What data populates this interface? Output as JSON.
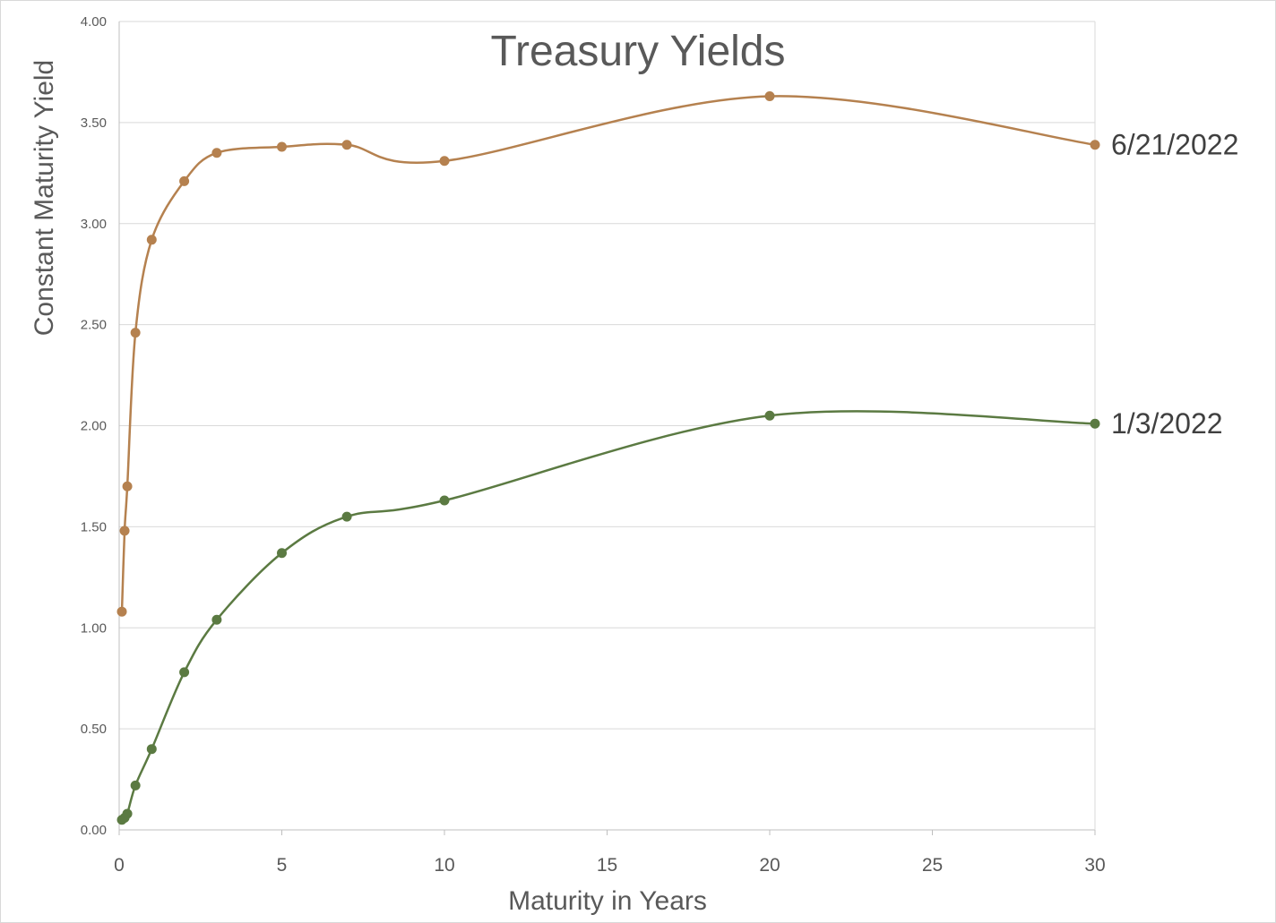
{
  "chart_data": {
    "type": "line",
    "title": "Treasury Yields",
    "xlabel": "Maturity in Years",
    "ylabel": "Constant Maturity Yield",
    "xlim": [
      0,
      30
    ],
    "ylim": [
      0,
      4
    ],
    "x_ticks": [
      "0",
      "5",
      "10",
      "15",
      "20",
      "25",
      "30"
    ],
    "y_ticks": [
      "0.00",
      "0.50",
      "1.00",
      "1.50",
      "2.00",
      "2.50",
      "3.00",
      "3.50",
      "4.00"
    ],
    "grid": "horizontal",
    "legend": "none",
    "smooth": true,
    "x": [
      0.0833,
      0.1667,
      0.25,
      0.5,
      1,
      2,
      3,
      5,
      7,
      10,
      20,
      30
    ],
    "series": [
      {
        "name": "6/21/2022",
        "color": "#b5814f",
        "values": [
          1.08,
          1.48,
          1.7,
          2.46,
          2.92,
          3.21,
          3.35,
          3.38,
          3.39,
          3.31,
          3.63,
          3.39
        ]
      },
      {
        "name": "1/3/2022",
        "color": "#5b7a42",
        "values": [
          0.05,
          0.06,
          0.08,
          0.22,
          0.4,
          0.78,
          1.04,
          1.37,
          1.55,
          1.63,
          2.05,
          2.01
        ]
      }
    ]
  }
}
